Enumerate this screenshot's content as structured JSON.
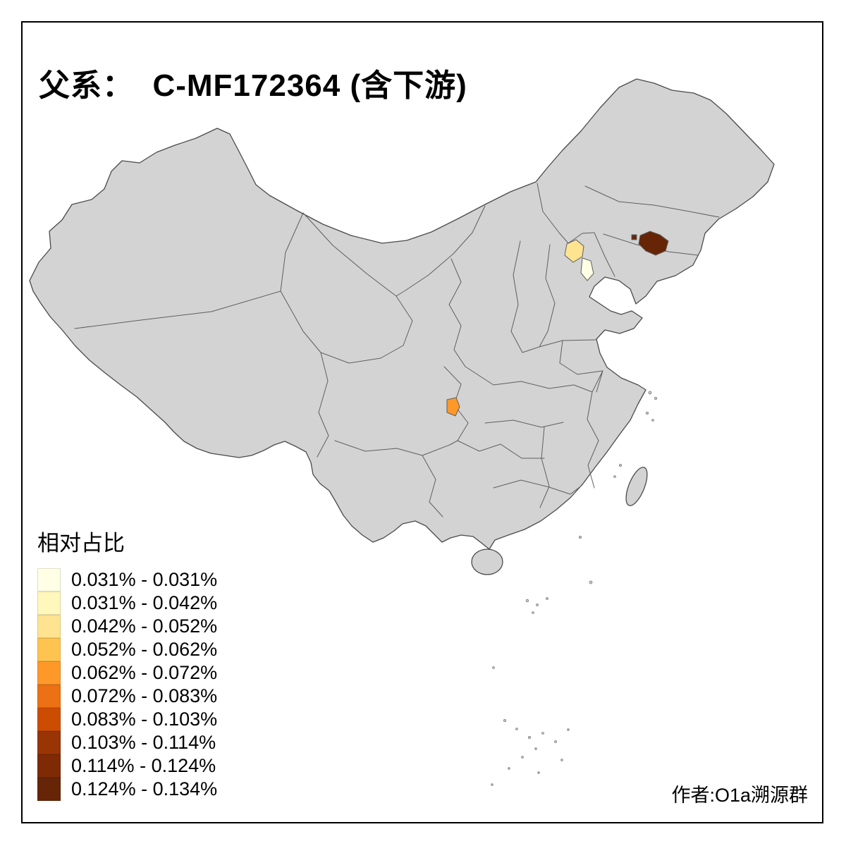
{
  "page": {
    "background": "#FFFFFF",
    "frame_color": "#000000"
  },
  "title": {
    "text": "父系：  C-MF172364 (含下游)"
  },
  "legend": {
    "title": "相对占比",
    "items": [
      {
        "label": "0.031% - 0.031%",
        "color": "#FFFFE5"
      },
      {
        "label": "0.031% - 0.042%",
        "color": "#FFF7BC"
      },
      {
        "label": "0.042% - 0.052%",
        "color": "#FEE391"
      },
      {
        "label": "0.052% - 0.062%",
        "color": "#FEC44F"
      },
      {
        "label": "0.062% - 0.072%",
        "color": "#FE9929"
      },
      {
        "label": "0.072% - 0.083%",
        "color": "#EC7014"
      },
      {
        "label": "0.083% - 0.103%",
        "color": "#CC4C02"
      },
      {
        "label": "0.103% - 0.114%",
        "color": "#993404"
      },
      {
        "label": "0.114% - 0.124%",
        "color": "#7E2A05"
      },
      {
        "label": "0.124% - 0.134%",
        "color": "#662506"
      }
    ]
  },
  "attribution": {
    "text": "作者:O1a溯源群"
  },
  "map": {
    "land_color": "#D3D3D3",
    "border_color": "#5F5F5F",
    "highlighted_regions": [
      {
        "name": "beijing",
        "color": "#FEE391"
      },
      {
        "name": "tianjin",
        "color": "#FFFFE5"
      },
      {
        "name": "west-liaoning",
        "color": "#662506"
      },
      {
        "name": "chongqing-area",
        "color": "#FE9929"
      }
    ]
  }
}
